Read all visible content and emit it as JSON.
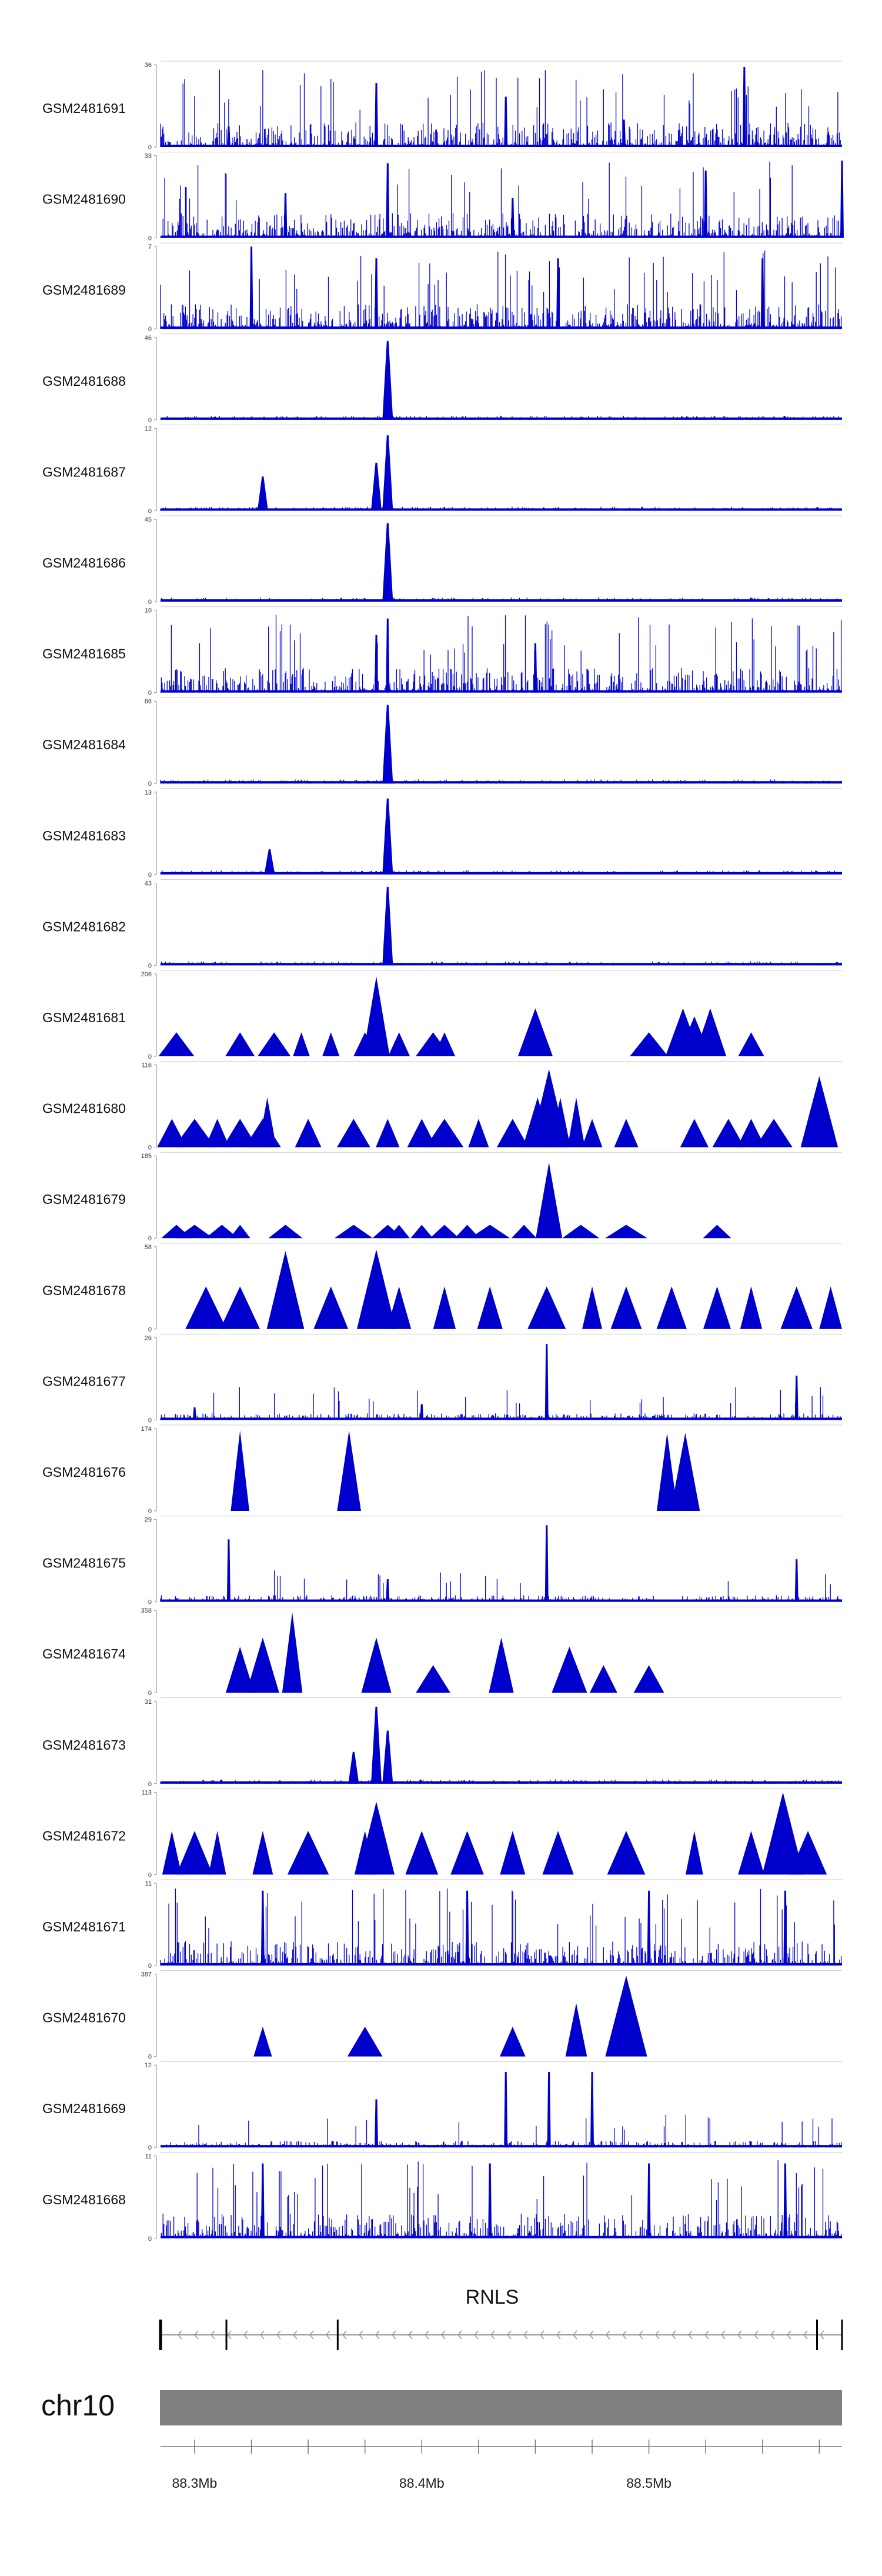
{
  "chart_data": {
    "type": "area",
    "region": {
      "chromosome": "chr10",
      "start_mb": 88.285,
      "end_mb": 88.585
    },
    "tracks": [
      {
        "name": "GSM2481691",
        "ymax": "36",
        "ymin": "0",
        "style": "dense",
        "peaks": [
          [
            88.38,
            28
          ],
          [
            88.437,
            22
          ],
          [
            88.489,
            12
          ],
          [
            88.542,
            35
          ],
          [
            88.315,
            9
          ]
        ]
      },
      {
        "name": "GSM2481690",
        "ymax": "33",
        "ymin": "0",
        "style": "dense",
        "peaks": [
          [
            88.385,
            30
          ],
          [
            88.34,
            18
          ],
          [
            88.44,
            16
          ],
          [
            88.525,
            27
          ],
          [
            88.585,
            31
          ]
        ]
      },
      {
        "name": "GSM2481689",
        "ymax": "7",
        "ymin": "0",
        "style": "dense",
        "peaks": [
          [
            88.325,
            7
          ],
          [
            88.38,
            6
          ],
          [
            88.46,
            6
          ],
          [
            88.55,
            6
          ]
        ]
      },
      {
        "name": "GSM2481688",
        "ymax": "46",
        "ymin": "0",
        "style": "peak",
        "peaks": [
          [
            88.385,
            44
          ]
        ]
      },
      {
        "name": "GSM2481687",
        "ymax": "12",
        "ymin": "0",
        "style": "peak",
        "peaks": [
          [
            88.385,
            11
          ],
          [
            88.38,
            7
          ],
          [
            88.33,
            5
          ]
        ]
      },
      {
        "name": "GSM2481686",
        "ymax": "45",
        "ymin": "0",
        "style": "peak",
        "peaks": [
          [
            88.385,
            43
          ]
        ]
      },
      {
        "name": "GSM2481685",
        "ymax": "10",
        "ymin": "0",
        "style": "dense",
        "peaks": [
          [
            88.385,
            9
          ],
          [
            88.38,
            7
          ],
          [
            88.45,
            6
          ]
        ]
      },
      {
        "name": "GSM2481684",
        "ymax": "66",
        "ymin": "0",
        "style": "peak",
        "peaks": [
          [
            88.385,
            63
          ]
        ]
      },
      {
        "name": "GSM2481683",
        "ymax": "13",
        "ymin": "0",
        "style": "peak",
        "peaks": [
          [
            88.385,
            12
          ],
          [
            88.333,
            4
          ]
        ]
      },
      {
        "name": "GSM2481682",
        "ymax": "43",
        "ymin": "0",
        "style": "peak",
        "peaks": [
          [
            88.385,
            41
          ]
        ]
      },
      {
        "name": "GSM2481681",
        "ymax": "206",
        "ymin": "0",
        "style": "triangles",
        "peaks": [
          [
            88.292,
            60
          ],
          [
            88.32,
            60
          ],
          [
            88.335,
            60
          ],
          [
            88.347,
            60
          ],
          [
            88.36,
            60
          ],
          [
            88.375,
            60
          ],
          [
            88.38,
            200
          ],
          [
            88.39,
            60
          ],
          [
            88.405,
            60
          ],
          [
            88.41,
            60
          ],
          [
            88.45,
            120
          ],
          [
            88.5,
            60
          ],
          [
            88.515,
            120
          ],
          [
            88.52,
            100
          ],
          [
            88.527,
            120
          ],
          [
            88.545,
            60
          ]
        ]
      },
      {
        "name": "GSM2481680",
        "ymax": "116",
        "ymin": "0",
        "style": "triangles",
        "peaks": [
          [
            88.29,
            40
          ],
          [
            88.3,
            40
          ],
          [
            88.31,
            40
          ],
          [
            88.32,
            40
          ],
          [
            88.33,
            40
          ],
          [
            88.332,
            70
          ],
          [
            88.35,
            40
          ],
          [
            88.37,
            40
          ],
          [
            88.385,
            40
          ],
          [
            88.4,
            40
          ],
          [
            88.41,
            40
          ],
          [
            88.425,
            40
          ],
          [
            88.44,
            40
          ],
          [
            88.451,
            70
          ],
          [
            88.456,
            110
          ],
          [
            88.461,
            70
          ],
          [
            88.468,
            70
          ],
          [
            88.475,
            40
          ],
          [
            88.49,
            40
          ],
          [
            88.52,
            40
          ],
          [
            88.535,
            40
          ],
          [
            88.545,
            40
          ],
          [
            88.555,
            40
          ],
          [
            88.575,
            100
          ]
        ]
      },
      {
        "name": "GSM2481679",
        "ymax": "185",
        "ymin": "0",
        "style": "triangles",
        "peaks": [
          [
            88.292,
            30
          ],
          [
            88.3,
            30
          ],
          [
            88.312,
            30
          ],
          [
            88.32,
            30
          ],
          [
            88.34,
            30
          ],
          [
            88.37,
            30
          ],
          [
            88.385,
            30
          ],
          [
            88.39,
            30
          ],
          [
            88.4,
            30
          ],
          [
            88.41,
            30
          ],
          [
            88.42,
            30
          ],
          [
            88.43,
            30
          ],
          [
            88.445,
            30
          ],
          [
            88.456,
            170
          ],
          [
            88.47,
            30
          ],
          [
            88.49,
            30
          ],
          [
            88.53,
            30
          ]
        ]
      },
      {
        "name": "GSM2481678",
        "ymax": "58",
        "ymin": "0",
        "style": "triangles",
        "peaks": [
          [
            88.305,
            30
          ],
          [
            88.32,
            30
          ],
          [
            88.34,
            55
          ],
          [
            88.36,
            30
          ],
          [
            88.38,
            56
          ],
          [
            88.39,
            30
          ],
          [
            88.41,
            30
          ],
          [
            88.43,
            30
          ],
          [
            88.455,
            30
          ],
          [
            88.475,
            30
          ],
          [
            88.49,
            30
          ],
          [
            88.51,
            30
          ],
          [
            88.53,
            30
          ],
          [
            88.545,
            30
          ],
          [
            88.565,
            30
          ],
          [
            88.58,
            30
          ]
        ]
      },
      {
        "name": "GSM2481677",
        "ymax": "26",
        "ymin": "0",
        "style": "sparse",
        "peaks": [
          [
            88.455,
            24
          ],
          [
            88.565,
            14
          ],
          [
            88.4,
            5
          ],
          [
            88.3,
            4
          ]
        ]
      },
      {
        "name": "GSM2481676",
        "ymax": "174",
        "ymin": "0",
        "style": "triangles",
        "peaks": [
          [
            88.32,
            170
          ],
          [
            88.368,
            170
          ],
          [
            88.508,
            165
          ],
          [
            88.516,
            165
          ]
        ]
      },
      {
        "name": "GSM2481675",
        "ymax": "29",
        "ymin": "0",
        "style": "sparse",
        "peaks": [
          [
            88.315,
            22
          ],
          [
            88.455,
            27
          ],
          [
            88.565,
            15
          ],
          [
            88.385,
            8
          ]
        ]
      },
      {
        "name": "GSM2481674",
        "ymax": "358",
        "ymin": "0",
        "style": "triangles",
        "peaks": [
          [
            88.32,
            200
          ],
          [
            88.33,
            240
          ],
          [
            88.343,
            350
          ],
          [
            88.38,
            240
          ],
          [
            88.405,
            120
          ],
          [
            88.435,
            240
          ],
          [
            88.465,
            200
          ],
          [
            88.48,
            120
          ],
          [
            88.5,
            120
          ]
        ]
      },
      {
        "name": "GSM2481673",
        "ymax": "31",
        "ymin": "0",
        "style": "peak",
        "peaks": [
          [
            88.38,
            29
          ],
          [
            88.385,
            20
          ],
          [
            88.37,
            12
          ]
        ]
      },
      {
        "name": "GSM2481672",
        "ymax": "113",
        "ymin": "0",
        "style": "triangles",
        "peaks": [
          [
            88.29,
            60
          ],
          [
            88.3,
            60
          ],
          [
            88.31,
            60
          ],
          [
            88.33,
            60
          ],
          [
            88.35,
            60
          ],
          [
            88.375,
            60
          ],
          [
            88.38,
            100
          ],
          [
            88.4,
            60
          ],
          [
            88.42,
            60
          ],
          [
            88.44,
            60
          ],
          [
            88.46,
            60
          ],
          [
            88.49,
            60
          ],
          [
            88.52,
            60
          ],
          [
            88.545,
            60
          ],
          [
            88.559,
            113
          ],
          [
            88.57,
            60
          ]
        ]
      },
      {
        "name": "GSM2481671",
        "ymax": "11",
        "ymin": "0",
        "style": "dense",
        "peaks": [
          [
            88.33,
            10
          ],
          [
            88.42,
            10
          ],
          [
            88.5,
            10
          ],
          [
            88.56,
            10
          ]
        ]
      },
      {
        "name": "GSM2481670",
        "ymax": "387",
        "ymin": "0",
        "style": "triangles",
        "peaks": [
          [
            88.33,
            140
          ],
          [
            88.375,
            140
          ],
          [
            88.44,
            140
          ],
          [
            88.468,
            250
          ],
          [
            88.49,
            380
          ]
        ]
      },
      {
        "name": "GSM2481669",
        "ymax": "12",
        "ymin": "0",
        "style": "sparse",
        "peaks": [
          [
            88.437,
            11
          ],
          [
            88.456,
            11
          ],
          [
            88.475,
            11
          ],
          [
            88.38,
            7
          ]
        ]
      },
      {
        "name": "GSM2481668",
        "ymax": "11",
        "ymin": "0",
        "style": "dense",
        "peaks": [
          [
            88.33,
            10
          ],
          [
            88.43,
            10
          ],
          [
            88.5,
            10
          ],
          [
            88.56,
            10
          ]
        ]
      }
    ],
    "gene": {
      "name": "RNLS",
      "start_mb": 88.285,
      "end_mb": 88.585,
      "strand": "-",
      "exons_mb": [
        88.285,
        88.314,
        88.363,
        88.574,
        88.585
      ]
    },
    "axis": {
      "ticks_mb": [
        88.3,
        88.4,
        88.5
      ],
      "tick_labels": [
        "88.3Mb",
        "88.4Mb",
        "88.5Mb"
      ]
    },
    "colors": {
      "signal": "#0000cc",
      "ideogram": "#7f7f7f",
      "axis": "#777777"
    }
  }
}
